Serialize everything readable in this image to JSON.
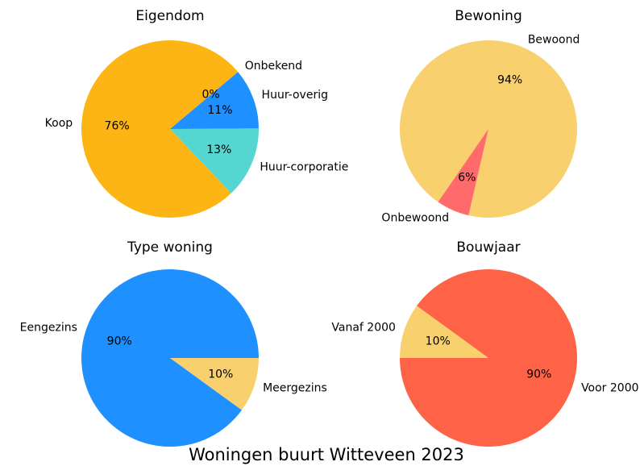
{
  "title": "Woningen buurt Witteveen 2023",
  "chart_data": [
    {
      "type": "pie",
      "title": "Eigendom",
      "categories": [
        "Koop",
        "Huur-corporatie",
        "Huur-overig",
        "Onbekend"
      ],
      "values": [
        76,
        13,
        11,
        0
      ],
      "value_labels": [
        "76%",
        "13%",
        "11%",
        "0%"
      ],
      "colors": [
        "#fdb515",
        "#56d6d0",
        "#1e90ff",
        "#a9a9a9"
      ]
    },
    {
      "type": "pie",
      "title": "Bewoning",
      "categories": [
        "Bewoond",
        "Onbewoond"
      ],
      "values": [
        94,
        6
      ],
      "value_labels": [
        "94%",
        "6%"
      ],
      "colors": [
        "#f9d06e",
        "#ff6b6b"
      ]
    },
    {
      "type": "pie",
      "title": "Type woning",
      "categories": [
        "Eengezins",
        "Meergezins"
      ],
      "values": [
        90,
        10
      ],
      "value_labels": [
        "90%",
        "10%"
      ],
      "colors": [
        "#1e90ff",
        "#f9d06e"
      ]
    },
    {
      "type": "pie",
      "title": "Bouwjaar",
      "categories": [
        "Voor 2000",
        "Vanaf 2000"
      ],
      "values": [
        90,
        10
      ],
      "value_labels": [
        "90%",
        "10%"
      ],
      "colors": [
        "#ff6347",
        "#f9d06e"
      ]
    }
  ]
}
